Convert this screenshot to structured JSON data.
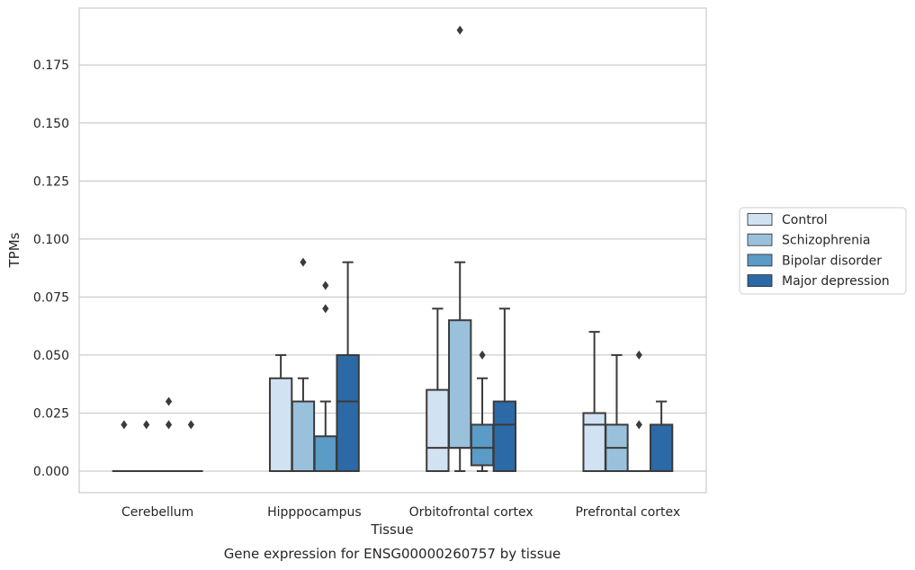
{
  "chart_data": {
    "type": "box",
    "title": "",
    "caption": "Gene expression for ENSG00000260757 by tissue",
    "xlabel": "Tissue",
    "ylabel": "TPMs",
    "ylim": [
      -0.0093,
      0.1995
    ],
    "yticks": [
      "0.000",
      "0.025",
      "0.050",
      "0.075",
      "0.100",
      "0.125",
      "0.150",
      "0.175"
    ],
    "grid": "horizontal",
    "legend_position": "right",
    "categories": [
      "Cerebellum",
      "Hipppocampus",
      "Orbitofrontal cortex",
      "Prefrontal cortex"
    ],
    "series": [
      {
        "name": "Control",
        "color": "#d1e2f2",
        "boxes": [
          {
            "q1": 0,
            "median": 0,
            "q3": 0,
            "whisker_low": 0,
            "whisker_high": 0,
            "outliers": [
              0.02
            ]
          },
          {
            "q1": 0,
            "median": 0,
            "q3": 0.04,
            "whisker_low": 0,
            "whisker_high": 0.05,
            "outliers": []
          },
          {
            "q1": 0,
            "median": 0.01,
            "q3": 0.035,
            "whisker_low": 0,
            "whisker_high": 0.07,
            "outliers": []
          },
          {
            "q1": 0,
            "median": 0.02,
            "q3": 0.025,
            "whisker_low": 0,
            "whisker_high": 0.06,
            "outliers": []
          }
        ]
      },
      {
        "name": "Schizophrenia",
        "color": "#9ac1dc",
        "boxes": [
          {
            "q1": 0,
            "median": 0,
            "q3": 0,
            "whisker_low": 0,
            "whisker_high": 0,
            "outliers": [
              0.02
            ]
          },
          {
            "q1": 0,
            "median": 0,
            "q3": 0.03,
            "whisker_low": 0,
            "whisker_high": 0.04,
            "outliers": [
              0.09
            ]
          },
          {
            "q1": 0.01,
            "median": 0.01,
            "q3": 0.065,
            "whisker_low": 0,
            "whisker_high": 0.09,
            "outliers": [
              0.19
            ]
          },
          {
            "q1": 0,
            "median": 0.01,
            "q3": 0.02,
            "whisker_low": 0,
            "whisker_high": 0.05,
            "outliers": []
          }
        ]
      },
      {
        "name": "Bipolar disorder",
        "color": "#5a9bc7",
        "boxes": [
          {
            "q1": 0,
            "median": 0,
            "q3": 0,
            "whisker_low": 0,
            "whisker_high": 0,
            "outliers": [
              0.03,
              0.02
            ]
          },
          {
            "q1": 0,
            "median": 0,
            "q3": 0.015,
            "whisker_low": 0,
            "whisker_high": 0.03,
            "outliers": [
              0.07,
              0.08
            ]
          },
          {
            "q1": 0.0025,
            "median": 0.01,
            "q3": 0.02,
            "whisker_low": 0,
            "whisker_high": 0.04,
            "outliers": [
              0.05
            ]
          },
          {
            "q1": 0,
            "median": 0,
            "q3": 0,
            "whisker_low": 0,
            "whisker_high": 0,
            "outliers": [
              0.02,
              0.05
            ]
          }
        ]
      },
      {
        "name": "Major depression",
        "color": "#2b6aa6",
        "boxes": [
          {
            "q1": 0,
            "median": 0,
            "q3": 0,
            "whisker_low": 0,
            "whisker_high": 0,
            "outliers": [
              0.02
            ]
          },
          {
            "q1": 0,
            "median": 0.03,
            "q3": 0.05,
            "whisker_low": 0,
            "whisker_high": 0.09,
            "outliers": []
          },
          {
            "q1": 0,
            "median": 0.02,
            "q3": 0.03,
            "whisker_low": 0,
            "whisker_high": 0.07,
            "outliers": []
          },
          {
            "q1": 0,
            "median": 0,
            "q3": 0.02,
            "whisker_low": 0,
            "whisker_high": 0.03,
            "outliers": []
          }
        ]
      }
    ]
  }
}
